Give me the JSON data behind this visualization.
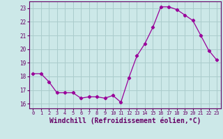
{
  "x": [
    0,
    1,
    2,
    3,
    4,
    5,
    6,
    7,
    8,
    9,
    10,
    11,
    12,
    13,
    14,
    15,
    16,
    17,
    18,
    19,
    20,
    21,
    22,
    23
  ],
  "y": [
    18.2,
    18.2,
    17.6,
    16.8,
    16.8,
    16.8,
    16.4,
    16.5,
    16.5,
    16.4,
    16.6,
    16.1,
    17.9,
    19.5,
    20.4,
    21.6,
    23.1,
    23.1,
    22.9,
    22.5,
    22.1,
    21.0,
    19.9,
    19.2
  ],
  "line_color": "#990099",
  "marker": "D",
  "marker_size": 2.2,
  "xlabel": "Windchill (Refroidissement éolien,°C)",
  "xlabel_fontsize": 7,
  "ylabel_ticks": [
    16,
    17,
    18,
    19,
    20,
    21,
    22,
    23
  ],
  "xlim": [
    -0.5,
    23.5
  ],
  "ylim": [
    15.65,
    23.5
  ],
  "bg_color": "#cce8e8",
  "grid_color": "#aacccc",
  "tick_color": "#660066",
  "spine_color": "#660066"
}
